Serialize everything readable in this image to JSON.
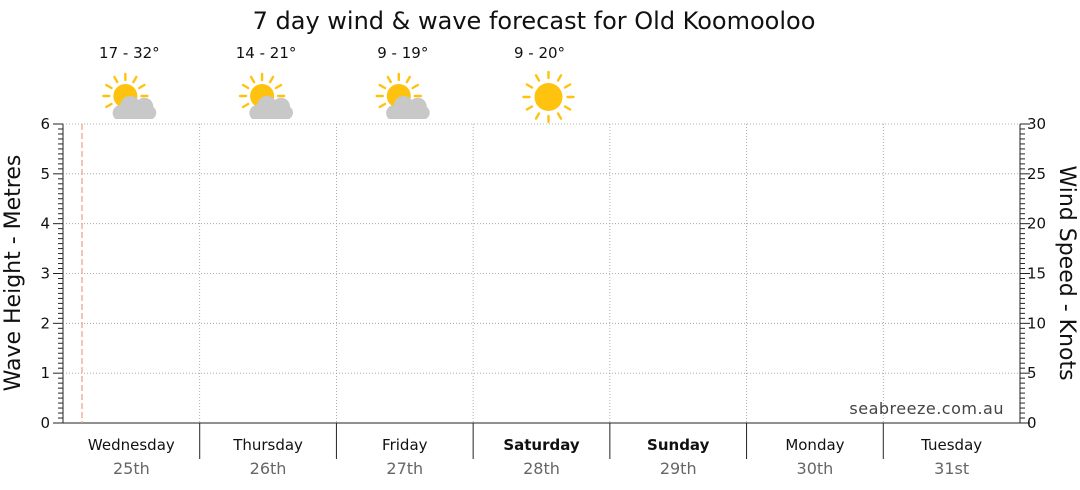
{
  "chart_data": {
    "type": "line",
    "title": "7 day wind & wave forecast for Old Koomooloo",
    "y_left": {
      "label": "Wave Height - Metres",
      "range": [
        0,
        6
      ],
      "ticks": [
        "0",
        "1",
        "2",
        "3",
        "4",
        "5",
        "6"
      ]
    },
    "y_right": {
      "label": "Wind Speed - Knots",
      "range": [
        0,
        30
      ],
      "ticks": [
        "0",
        "5",
        "10",
        "15",
        "20",
        "25",
        "30"
      ]
    },
    "days": [
      {
        "name": "Wednesday",
        "date": "25th",
        "bold": false,
        "temp": "17 - 32°",
        "icon": "partly-cloudy-icon"
      },
      {
        "name": "Thursday",
        "date": "26th",
        "bold": false,
        "temp": "14 - 21°",
        "icon": "partly-cloudy-icon"
      },
      {
        "name": "Friday",
        "date": "27th",
        "bold": false,
        "temp": "9 - 19°",
        "icon": "partly-cloudy-icon"
      },
      {
        "name": "Saturday",
        "date": "28th",
        "bold": true,
        "temp": "9 - 20°",
        "icon": "sun-icon"
      },
      {
        "name": "Sunday",
        "date": "29th",
        "bold": true,
        "temp": "",
        "icon": ""
      },
      {
        "name": "Monday",
        "date": "30th",
        "bold": false,
        "temp": "",
        "icon": ""
      },
      {
        "name": "Tuesday",
        "date": "31st",
        "bold": false,
        "temp": "",
        "icon": ""
      }
    ],
    "series": [],
    "grid": true,
    "current_time_marker": true,
    "watermark": "seabreeze.com.au"
  },
  "colors": {
    "sun": "#FFC20E",
    "cloud": "#C8C8C8",
    "grid": "#999999",
    "now_marker": "#E8A080",
    "axis": "#222222"
  }
}
